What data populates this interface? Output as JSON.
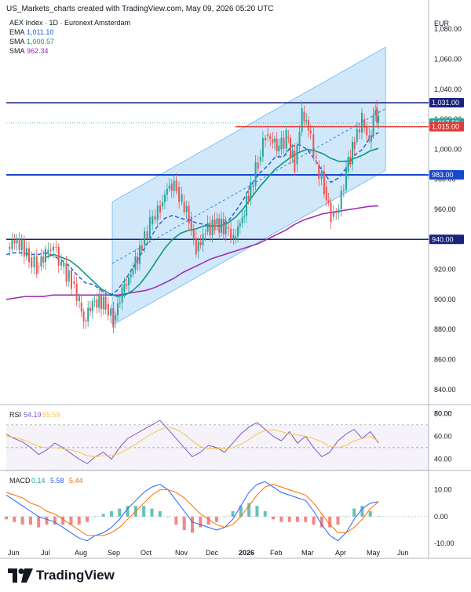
{
  "header": {
    "text": "US_Markets_charts created with TradingView.com, May 09, 2026 05:20 UTC"
  },
  "footer": {
    "brand": "TradingView",
    "logo_icon": "tradingview-logo-icon"
  },
  "colors": {
    "ema": "#1e53e5",
    "sma_fast": "#089981",
    "sma_slow": "#9c27b0",
    "up": "#26a69a",
    "down": "#ef5350",
    "channel_fill": "#b3d9f7",
    "line_dark_blue": "#1a237e",
    "line_blue": "#1848cc",
    "line_red": "#e53935",
    "rsi": "#7e57c2",
    "rsi_ma": "#f7c744",
    "macd": "#2962ff",
    "signal": "#ff6d00"
  },
  "chart_data": [
    {
      "type": "candlestick",
      "title": "AEX Index · 1D · Euronext Amsterdam",
      "currency": "EUR",
      "ylim": [
        830,
        1090
      ],
      "y_ticks": [
        "840.00",
        "860.00",
        "880.00",
        "900.00",
        "920.00",
        "940.00",
        "960.00",
        "980.00",
        "1,000.00",
        "1,020.00",
        "1,040.00",
        "1,060.00",
        "1,080.00"
      ],
      "x_ticks": [
        "Jun",
        "Jul",
        "Aug",
        "Sep",
        "Oct",
        "Nov",
        "Dec",
        "2026",
        "Feb",
        "Mar",
        "Apr",
        "May",
        "Jun"
      ],
      "legend": [
        {
          "name": "EMA",
          "value": "1,011.10",
          "color": "#1e53e5"
        },
        {
          "name": "SMA",
          "value": "1,000.57",
          "color": "#089981"
        },
        {
          "name": "SMA",
          "value": "962.34",
          "color": "#9c27b0"
        }
      ],
      "price_labels": [
        {
          "text": "1,031.00",
          "value": 1031,
          "color": "#1a237e"
        },
        {
          "text": "1,017.50",
          "value": 1017.5,
          "color": "#26a69a"
        },
        {
          "text": "1,015.00",
          "value": 1015,
          "color": "#e53935"
        },
        {
          "text": "983.00",
          "value": 983,
          "color": "#1848cc"
        },
        {
          "text": "940.00",
          "value": 940,
          "color": "#1a237e"
        }
      ],
      "horizontal_levels": [
        1031,
        1015,
        983,
        940
      ],
      "channel": {
        "start": {
          "date": "Sep 1",
          "low": 883,
          "high": 965
        },
        "end": {
          "date": "May 15",
          "low": 986,
          "high": 1068
        }
      },
      "close_series": [
        {
          "date": "May 26",
          "value": 935
        },
        {
          "date": "Jun 5",
          "value": 940
        },
        {
          "date": "Jun 16",
          "value": 928
        },
        {
          "date": "Jun 23",
          "value": 922
        },
        {
          "date": "Jul 1",
          "value": 930
        },
        {
          "date": "Jul 8",
          "value": 935
        },
        {
          "date": "Jul 15",
          "value": 922
        },
        {
          "date": "Jul 24",
          "value": 912
        },
        {
          "date": "Aug 1",
          "value": 898
        },
        {
          "date": "Aug 5",
          "value": 886
        },
        {
          "date": "Aug 15",
          "value": 900
        },
        {
          "date": "Aug 25",
          "value": 897
        },
        {
          "date": "Sep 2",
          "value": 886
        },
        {
          "date": "Sep 10",
          "value": 905
        },
        {
          "date": "Sep 20",
          "value": 920
        },
        {
          "date": "Sep 28",
          "value": 936
        },
        {
          "date": "Oct 5",
          "value": 950
        },
        {
          "date": "Oct 14",
          "value": 962
        },
        {
          "date": "Oct 22",
          "value": 977
        },
        {
          "date": "Oct 28",
          "value": 975
        },
        {
          "date": "Nov 3",
          "value": 965
        },
        {
          "date": "Nov 10",
          "value": 955
        },
        {
          "date": "Nov 17",
          "value": 932
        },
        {
          "date": "Nov 26",
          "value": 945
        },
        {
          "date": "Dec 5",
          "value": 950
        },
        {
          "date": "Dec 15",
          "value": 948
        },
        {
          "date": "Dec 22",
          "value": 940
        },
        {
          "date": "Dec 30",
          "value": 955
        },
        {
          "date": "Jan 8",
          "value": 975
        },
        {
          "date": "Jan 15",
          "value": 992
        },
        {
          "date": "Jan 22",
          "value": 1010
        },
        {
          "date": "Jan 29",
          "value": 1005
        },
        {
          "date": "Feb 5",
          "value": 1000
        },
        {
          "date": "Feb 12",
          "value": 1008
        },
        {
          "date": "Feb 20",
          "value": 990
        },
        {
          "date": "Feb 27",
          "value": 1025
        },
        {
          "date": "Mar 5",
          "value": 1010
        },
        {
          "date": "Mar 10",
          "value": 990
        },
        {
          "date": "Mar 17",
          "value": 975
        },
        {
          "date": "Mar 23",
          "value": 955
        },
        {
          "date": "Mar 30",
          "value": 960
        },
        {
          "date": "Apr 7",
          "value": 985
        },
        {
          "date": "Apr 15",
          "value": 1005
        },
        {
          "date": "Apr 22",
          "value": 1020
        },
        {
          "date": "Apr 29",
          "value": 1005
        },
        {
          "date": "May 5",
          "value": 1028
        },
        {
          "date": "May 8",
          "value": 1017.5
        }
      ],
      "ema_series": [
        930,
        931,
        931,
        930,
        930,
        931,
        929,
        926,
        922,
        916,
        911,
        910,
        906,
        902,
        906,
        913,
        921,
        930,
        939,
        948,
        954,
        956,
        954,
        953,
        951,
        950,
        949,
        949,
        952,
        959,
        967,
        977,
        984,
        989,
        995,
        995,
        1002,
        1003,
        1000,
        993,
        985,
        978,
        981,
        988,
        996,
        1000,
        1008,
        1011.1
      ],
      "sma_fast_series": [
        null,
        null,
        null,
        null,
        null,
        928,
        930,
        928,
        926,
        922,
        917,
        912,
        907,
        904,
        902,
        903,
        906,
        911,
        918,
        926,
        934,
        940,
        944,
        946,
        947,
        949,
        949,
        949,
        951,
        955,
        961,
        968,
        975,
        981,
        987,
        991,
        995,
        998,
        1000,
        999,
        997,
        994,
        992,
        992,
        994,
        996,
        999,
        1000.57
      ],
      "sma_slow_series": [
        900,
        901,
        902,
        902,
        902,
        903,
        903,
        903,
        903,
        903,
        903,
        903,
        903,
        904,
        905,
        906,
        908,
        911,
        914,
        918,
        921,
        924,
        927,
        929,
        931,
        933,
        935,
        937,
        940,
        943,
        946,
        950,
        953,
        955,
        957,
        958,
        959,
        960,
        961,
        962,
        962.34
      ]
    },
    {
      "type": "line",
      "title": "RSI",
      "legend": [
        {
          "name": "RSI",
          "value": "54.19",
          "color": "#7e57c2"
        },
        {
          "name": "",
          "value": "55.59",
          "color": "#f7c744"
        }
      ],
      "ylim": [
        30,
        85
      ],
      "y_ticks": [
        "40.00",
        "60.00",
        "80.00"
      ],
      "bands": [
        70,
        50,
        30
      ],
      "series": [
        {
          "name": "RSI",
          "values": [
            62,
            58,
            55,
            50,
            44,
            48,
            54,
            50,
            45,
            40,
            36,
            42,
            46,
            40,
            50,
            58,
            62,
            66,
            70,
            74,
            66,
            58,
            50,
            42,
            46,
            52,
            50,
            46,
            54,
            62,
            68,
            72,
            66,
            60,
            56,
            64,
            54,
            60,
            50,
            42,
            46,
            56,
            62,
            66,
            58,
            64,
            54.19
          ]
        },
        {
          "name": "RSI MA",
          "values": [
            60,
            59,
            57,
            54,
            51,
            50,
            50,
            49,
            48,
            46,
            43,
            42,
            43,
            43,
            45,
            49,
            53,
            58,
            62,
            66,
            68,
            66,
            62,
            56,
            51,
            49,
            49,
            49,
            50,
            53,
            57,
            62,
            65,
            66,
            64,
            62,
            61,
            60,
            58,
            55,
            51,
            50,
            52,
            56,
            58,
            60,
            55.59
          ]
        }
      ]
    },
    {
      "type": "line+bar",
      "title": "MACD",
      "legend": [
        {
          "name": "MACD",
          "value": "0.14",
          "color": "#26a69a"
        },
        {
          "name": "",
          "value": "5.58",
          "color": "#2962ff"
        },
        {
          "name": "",
          "value": "5.44",
          "color": "#ff6d00"
        }
      ],
      "ylim": [
        -12,
        16
      ],
      "y_ticks": [
        "-10.00",
        "0.00",
        "10.00"
      ],
      "series": [
        {
          "name": "MACD",
          "values": [
            8,
            6,
            4,
            2,
            0,
            -1,
            -2,
            -4,
            -6,
            -8,
            -9,
            -7,
            -6,
            -4,
            -1,
            3,
            6,
            9,
            11,
            12,
            10,
            6,
            2,
            -2,
            -3,
            -4,
            -5,
            -4,
            -1,
            4,
            9,
            12,
            13,
            11,
            9,
            8,
            7,
            6,
            2,
            -3,
            -7,
            -9,
            -6,
            -1,
            3,
            5,
            5.58
          ]
        },
        {
          "name": "Signal",
          "values": [
            9,
            8,
            7,
            5,
            4,
            2,
            1,
            -1,
            -3,
            -5,
            -7,
            -7,
            -7,
            -6,
            -4,
            -1,
            2,
            5,
            8,
            10,
            10,
            9,
            7,
            4,
            1,
            -1,
            -3,
            -4,
            -3,
            0,
            4,
            8,
            11,
            12,
            11,
            10,
            9,
            8,
            5,
            1,
            -3,
            -6,
            -6,
            -4,
            -1,
            3,
            5.44
          ]
        },
        {
          "name": "Histogram",
          "values": [
            -1,
            -2,
            -3,
            -3,
            -4,
            -3,
            -3,
            -3,
            -3,
            -3,
            -2,
            0,
            1,
            2,
            3,
            4,
            4,
            4,
            3,
            2,
            0,
            -3,
            -5,
            -6,
            -4,
            -3,
            -2,
            0,
            2,
            4,
            5,
            4,
            2,
            -1,
            -2,
            -2,
            -2,
            -2,
            -3,
            -4,
            -4,
            -3,
            0,
            3,
            4,
            2,
            0.14
          ]
        }
      ]
    }
  ]
}
